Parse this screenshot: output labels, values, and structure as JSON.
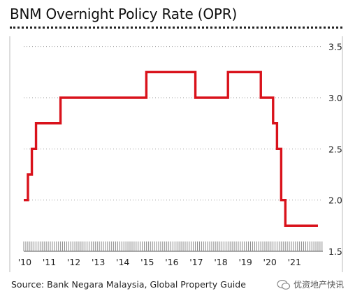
{
  "header": {
    "title": "BNM Overnight Policy Rate (OPR)"
  },
  "footer": {
    "source": "Source: Bank Negara Malaysia, Global Property Guide",
    "watermark": "优资地产快讯"
  },
  "chart_data": {
    "type": "line",
    "title": "BNM Overnight Policy Rate (OPR)",
    "xlabel": "",
    "ylabel": "",
    "xlim": [
      2010.0,
      2022.2
    ],
    "ylim": [
      1.5,
      3.6
    ],
    "y_ticks": [
      1.5,
      2.0,
      2.5,
      3.0,
      3.5
    ],
    "y_tick_labels": [
      "1.5",
      "2.0",
      "2.5",
      "3.0",
      "3.5"
    ],
    "x_ticks": [
      2010,
      2011,
      2012,
      2013,
      2014,
      2015,
      2016,
      2017,
      2018,
      2019,
      2020,
      2021
    ],
    "x_tick_labels": [
      "'10",
      "'11",
      "'12",
      "'13",
      "'14",
      "'15",
      "'16",
      "'17",
      "'18",
      "'19",
      "'20",
      "'21"
    ],
    "y_axis_side": "right",
    "grid": "horizontal dotted",
    "line_color": "#d9121b",
    "series": [
      {
        "step": true,
        "x": [
          2010.0,
          2010.17,
          2010.33,
          2010.5,
          2011.33,
          2011.5,
          2014.58,
          2015.0,
          2016.58,
          2017.0,
          2018.0,
          2018.33,
          2019.33,
          2019.67,
          2020.0,
          2020.17,
          2020.33,
          2020.5,
          2020.58,
          2020.67,
          2022.0
        ],
        "y": [
          2.0,
          2.25,
          2.5,
          2.75,
          2.75,
          3.0,
          3.0,
          3.25,
          3.25,
          3.0,
          3.0,
          3.25,
          3.25,
          3.0,
          3.0,
          2.75,
          2.5,
          2.0,
          2.0,
          1.75,
          1.75
        ]
      }
    ]
  }
}
